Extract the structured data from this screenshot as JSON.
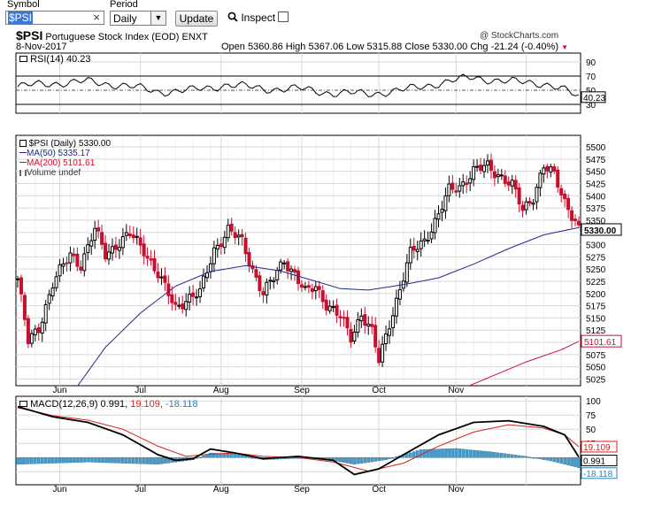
{
  "toolbar": {
    "symbol_label": "Symbol",
    "symbol_value": "$PSI",
    "clear_glyph": "×",
    "period_label": "Period",
    "period_value": "Daily",
    "update_label": "Update",
    "inspect_label": "Inspect"
  },
  "header": {
    "symbol": "$PSI",
    "name": "Portuguese Stock Index (EOD)",
    "exchange": "ENXT",
    "watermark": "@ StockCharts.com",
    "date": "8-Nov-2017",
    "ohlc_text": "Open 5360.86  High 5367.06  Low 5315.88  Close 5330.00  Chg -21.24 (-0.40%)",
    "chg_marker": "▼"
  },
  "rsi_panel": {
    "label": "RSI(14) 40.23",
    "value_label": "40.23",
    "ticks": [
      "90",
      "70",
      "50",
      "30"
    ]
  },
  "price_panel": {
    "legend": [
      {
        "text": "$PSI (Daily) 5330.00",
        "color": "#000000"
      },
      {
        "text": "MA(50) 5335.17",
        "color": "#1f2a8c"
      },
      {
        "text": "MA(200) 5101.61",
        "color": "#c8102e"
      },
      {
        "text": "Volume undef",
        "color": "#333333"
      }
    ],
    "price_ticks": [
      "5500",
      "5475",
      "5450",
      "5425",
      "5400",
      "5375",
      "5350",
      "5325",
      "5300",
      "5275",
      "5250",
      "5225",
      "5200",
      "5175",
      "5150",
      "5125",
      "5100",
      "5075",
      "5050",
      "5025"
    ],
    "last_price_label": "5330.00",
    "ma200_label": "5101.61",
    "months": [
      "Jun",
      "Jul",
      "Aug",
      "Sep",
      "Oct",
      "Nov"
    ]
  },
  "macd_panel": {
    "label_prefix": "MACD(12,26,9)",
    "macd_value": "0.991,",
    "signal_value": "19.109,",
    "hist_value": "-18.118",
    "ticks": [
      "100",
      "75",
      "50",
      "25",
      "0",
      "-25"
    ],
    "macd_label": "0.991",
    "signal_label": "19.109",
    "hist_label": "-18.118"
  },
  "colors": {
    "up": "#000000",
    "down": "#c8102e",
    "ma50": "#1f2a8c",
    "ma200": "#c8102e",
    "macd_line": "#000000",
    "signal_line": "#d42020",
    "histogram": "#4a9cc8",
    "grid": "#d8d8d8"
  },
  "chart_data": [
    {
      "type": "candlestick",
      "title": "$PSI Portuguese Stock Index (EOD) ENXT",
      "x_range": [
        "2017-05-15",
        "2017-11-08"
      ],
      "ylim": [
        5015,
        5520
      ],
      "x_tick_labels": [
        "Jun",
        "Jul",
        "Aug",
        "Sep",
        "Oct",
        "Nov"
      ],
      "series": [
        {
          "name": "$PSI (Daily)",
          "close_points": [
            [
              0,
              5230
            ],
            [
              3,
              5100
            ],
            [
              6,
              5130
            ],
            [
              10,
              5220
            ],
            [
              15,
              5280
            ],
            [
              18,
              5260
            ],
            [
              22,
              5330
            ],
            [
              25,
              5280
            ],
            [
              28,
              5300
            ],
            [
              32,
              5320
            ],
            [
              36,
              5290
            ],
            [
              40,
              5240
            ],
            [
              42,
              5210
            ],
            [
              45,
              5170
            ],
            [
              48,
              5190
            ],
            [
              52,
              5200
            ],
            [
              56,
              5290
            ],
            [
              60,
              5330
            ],
            [
              64,
              5305
            ],
            [
              67,
              5250
            ],
            [
              70,
              5200
            ],
            [
              73,
              5230
            ],
            [
              76,
              5270
            ],
            [
              79,
              5240
            ],
            [
              82,
              5200
            ],
            [
              85,
              5215
            ],
            [
              88,
              5180
            ],
            [
              92,
              5150
            ],
            [
              95,
              5110
            ],
            [
              98,
              5160
            ],
            [
              101,
              5120
            ],
            [
              103,
              5060
            ],
            [
              106,
              5140
            ],
            [
              109,
              5210
            ],
            [
              112,
              5280
            ],
            [
              116,
              5310
            ],
            [
              120,
              5360
            ],
            [
              123,
              5410
            ],
            [
              126,
              5420
            ],
            [
              130,
              5450
            ],
            [
              134,
              5460
            ],
            [
              138,
              5440
            ],
            [
              141,
              5420
            ],
            [
              144,
              5370
            ],
            [
              147,
              5400
            ],
            [
              150,
              5460
            ],
            [
              153,
              5440
            ],
            [
              156,
              5390
            ],
            [
              159,
              5350
            ],
            [
              160,
              5330
            ]
          ]
        },
        {
          "name": "MA(50)",
          "points": [
            [
              15,
              4990
            ],
            [
              25,
              5090
            ],
            [
              35,
              5160
            ],
            [
              45,
              5215
            ],
            [
              55,
              5245
            ],
            [
              65,
              5257
            ],
            [
              75,
              5246
            ],
            [
              85,
              5225
            ],
            [
              92,
              5210
            ],
            [
              100,
              5207
            ],
            [
              110,
              5218
            ],
            [
              120,
              5232
            ],
            [
              130,
              5260
            ],
            [
              140,
              5292
            ],
            [
              150,
              5320
            ],
            [
              160,
              5335
            ]
          ]
        },
        {
          "name": "MA(200)",
          "points": [
            [
              125,
              5000
            ],
            [
              135,
              5030
            ],
            [
              145,
              5060
            ],
            [
              155,
              5085
            ],
            [
              160,
              5102
            ]
          ]
        }
      ],
      "n_bars": 161
    },
    {
      "type": "line",
      "title": "RSI(14)",
      "ylim": [
        20,
        100
      ],
      "y_ticks": [
        90,
        70,
        50,
        30
      ],
      "series": [
        {
          "name": "RSI(14)",
          "points": [
            [
              0,
              55
            ],
            [
              10,
              60
            ],
            [
              20,
              62
            ],
            [
              30,
              57
            ],
            [
              40,
              48
            ],
            [
              50,
              50
            ],
            [
              60,
              58
            ],
            [
              70,
              52
            ],
            [
              80,
              52
            ],
            [
              90,
              46
            ],
            [
              100,
              45
            ],
            [
              110,
              50
            ],
            [
              120,
              60
            ],
            [
              130,
              68
            ],
            [
              140,
              62
            ],
            [
              150,
              60
            ],
            [
              155,
              52
            ],
            [
              160,
              40
            ]
          ]
        }
      ]
    },
    {
      "type": "line",
      "title": "MACD(12,26,9)",
      "ylim": [
        -45,
        105
      ],
      "y_ticks": [
        100,
        75,
        50,
        25,
        0,
        -25
      ],
      "series": [
        {
          "name": "MACD",
          "points": [
            [
              0,
              90
            ],
            [
              10,
              72
            ],
            [
              20,
              62
            ],
            [
              30,
              40
            ],
            [
              40,
              5
            ],
            [
              45,
              -5
            ],
            [
              50,
              -2
            ],
            [
              55,
              15
            ],
            [
              62,
              8
            ],
            [
              70,
              -2
            ],
            [
              80,
              2
            ],
            [
              90,
              -5
            ],
            [
              96,
              -30
            ],
            [
              103,
              -20
            ],
            [
              110,
              5
            ],
            [
              120,
              40
            ],
            [
              130,
              62
            ],
            [
              140,
              65
            ],
            [
              150,
              55
            ],
            [
              156,
              40
            ],
            [
              160,
              1
            ]
          ]
        },
        {
          "name": "Signal",
          "points": [
            [
              0,
              88
            ],
            [
              10,
              74
            ],
            [
              20,
              66
            ],
            [
              30,
              50
            ],
            [
              40,
              20
            ],
            [
              48,
              2
            ],
            [
              55,
              6
            ],
            [
              62,
              8
            ],
            [
              70,
              2
            ],
            [
              80,
              0
            ],
            [
              90,
              -8
            ],
            [
              100,
              -24
            ],
            [
              110,
              -10
            ],
            [
              120,
              20
            ],
            [
              130,
              45
            ],
            [
              140,
              58
            ],
            [
              150,
              52
            ],
            [
              156,
              40
            ],
            [
              160,
              19
            ]
          ]
        },
        {
          "name": "Histogram",
          "points": [
            [
              0,
              -12
            ],
            [
              20,
              -8
            ],
            [
              40,
              -12
            ],
            [
              50,
              -4
            ],
            [
              55,
              8
            ],
            [
              62,
              6
            ],
            [
              70,
              -4
            ],
            [
              85,
              0
            ],
            [
              96,
              -12
            ],
            [
              105,
              -4
            ],
            [
              115,
              14
            ],
            [
              125,
              16
            ],
            [
              135,
              10
            ],
            [
              145,
              2
            ],
            [
              152,
              -6
            ],
            [
              160,
              -18
            ]
          ]
        }
      ]
    }
  ]
}
